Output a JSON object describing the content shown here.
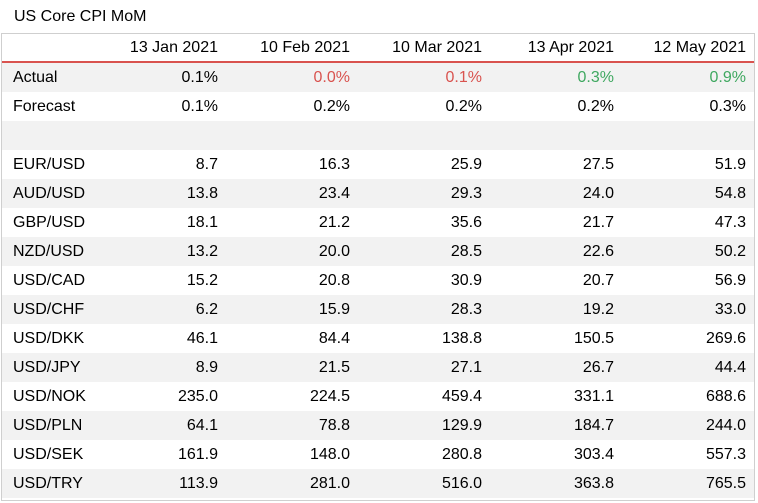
{
  "title": "US Core CPI MoM",
  "colors": {
    "header_rule": "#d9534f",
    "negative": "#d9534f",
    "positive": "#3fa860",
    "shade": "#f2f2f2"
  },
  "dates": [
    "13 Jan 2021",
    "10 Feb 2021",
    "10 Mar 2021",
    "13 Apr 2021",
    "12 May 2021"
  ],
  "actual": {
    "label": "Actual",
    "values": [
      "0.1%",
      "0.0%",
      "0.1%",
      "0.3%",
      "0.9%"
    ],
    "tone": [
      "neutral",
      "negative",
      "negative",
      "positive",
      "positive"
    ]
  },
  "forecast": {
    "label": "Forecast",
    "values": [
      "0.1%",
      "0.2%",
      "0.2%",
      "0.2%",
      "0.3%"
    ]
  },
  "pairs": [
    {
      "pair": "EUR/USD",
      "values": [
        "8.7",
        "16.3",
        "25.9",
        "27.5",
        "51.9"
      ]
    },
    {
      "pair": "AUD/USD",
      "values": [
        "13.8",
        "23.4",
        "29.3",
        "24.0",
        "54.8"
      ]
    },
    {
      "pair": "GBP/USD",
      "values": [
        "18.1",
        "21.2",
        "35.6",
        "21.7",
        "47.3"
      ]
    },
    {
      "pair": "NZD/USD",
      "values": [
        "13.2",
        "20.0",
        "28.5",
        "22.6",
        "50.2"
      ]
    },
    {
      "pair": "USD/CAD",
      "values": [
        "15.2",
        "20.8",
        "30.9",
        "20.7",
        "56.9"
      ]
    },
    {
      "pair": "USD/CHF",
      "values": [
        "6.2",
        "15.9",
        "28.3",
        "19.2",
        "33.0"
      ]
    },
    {
      "pair": "USD/DKK",
      "values": [
        "46.1",
        "84.4",
        "138.8",
        "150.5",
        "269.6"
      ]
    },
    {
      "pair": "USD/JPY",
      "values": [
        "8.9",
        "21.5",
        "27.1",
        "26.7",
        "44.4"
      ]
    },
    {
      "pair": "USD/NOK",
      "values": [
        "235.0",
        "224.5",
        "459.4",
        "331.1",
        "688.6"
      ]
    },
    {
      "pair": "USD/PLN",
      "values": [
        "64.1",
        "78.8",
        "129.9",
        "184.7",
        "244.0"
      ]
    },
    {
      "pair": "USD/SEK",
      "values": [
        "161.9",
        "148.0",
        "280.8",
        "303.4",
        "557.3"
      ]
    },
    {
      "pair": "USD/TRY",
      "values": [
        "113.9",
        "281.0",
        "516.0",
        "363.8",
        "765.5"
      ]
    }
  ]
}
